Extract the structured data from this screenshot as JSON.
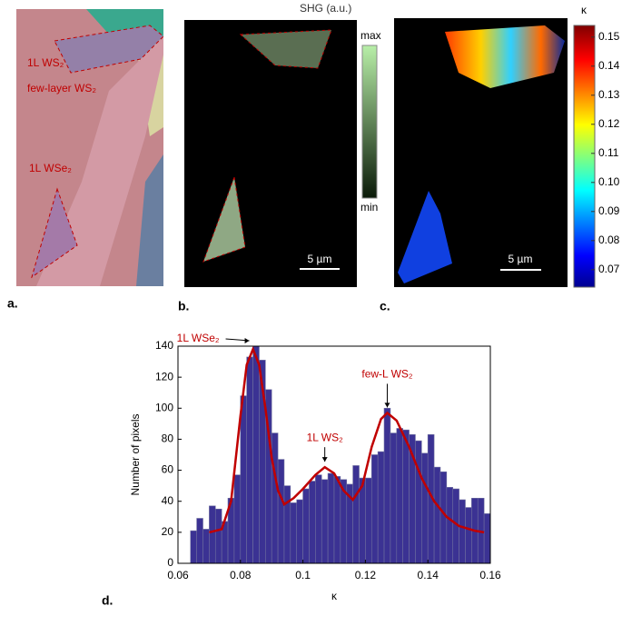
{
  "panels": {
    "a": {
      "label": "a.",
      "annotations": [
        "1L WS₂",
        "few-layer WS₂",
        "1L WSe₂"
      ]
    },
    "b": {
      "label": "b.",
      "colorbar_title": "SHG (a.u.)",
      "colorbar_max": "max",
      "colorbar_min": "min",
      "scale_bar": "5 µm"
    },
    "c": {
      "label": "c.",
      "colorbar_title": "κ",
      "scale_bar": "5 µm",
      "clim": [
        0.064,
        0.154
      ],
      "cticks": [
        0.07,
        0.08,
        0.09,
        {
          "value": 0.1,
          "label": "0.10"
        },
        0.11,
        0.12,
        0.13,
        0.14,
        0.15
      ]
    },
    "d": {
      "label": "d."
    }
  },
  "chart_data": {
    "type": "histogram",
    "xlabel": "κ",
    "ylabel": "Number of pixels",
    "bins": [
      0.064,
      0.066,
      0.068,
      0.07,
      0.072,
      0.074,
      0.076,
      0.078,
      0.08,
      0.082,
      0.084,
      0.086,
      0.088,
      0.09,
      0.092,
      0.094,
      0.096,
      0.098,
      0.1,
      0.102,
      0.104,
      0.106,
      0.108,
      0.11,
      0.112,
      0.114,
      0.116,
      0.118,
      0.12,
      0.122,
      0.124,
      0.126,
      0.128,
      0.13,
      0.132,
      0.134,
      0.136,
      0.138,
      0.14,
      0.142,
      0.144,
      0.146,
      0.148,
      0.15,
      0.152,
      0.154,
      0.156,
      0.158,
      0.16
    ],
    "values": [
      21,
      29,
      22,
      37,
      35,
      27,
      42,
      57,
      108,
      133,
      140,
      131,
      112,
      84,
      67,
      50,
      39,
      41,
      48,
      53,
      57,
      54,
      58,
      56,
      54,
      51,
      63,
      55,
      55,
      70,
      72,
      100,
      84,
      87,
      86,
      83,
      79,
      71,
      83,
      62,
      59,
      49,
      48,
      41,
      36,
      42,
      42,
      32
    ],
    "color": "#3b3293",
    "fit": {
      "color": "#c00000",
      "x": [
        0.07,
        0.074,
        0.077,
        0.08,
        0.082,
        0.084,
        0.086,
        0.088,
        0.09,
        0.092,
        0.094,
        0.097,
        0.1,
        0.104,
        0.107,
        0.11,
        0.113,
        0.116,
        0.119,
        0.122,
        0.125,
        0.127,
        0.13,
        0.134,
        0.138,
        0.142,
        0.146,
        0.15,
        0.155,
        0.158
      ],
      "values": [
        20,
        22,
        40,
        95,
        128,
        138,
        128,
        100,
        68,
        47,
        38,
        42,
        48,
        57,
        62,
        58,
        47,
        41,
        50,
        75,
        93,
        97,
        92,
        75,
        55,
        40,
        30,
        24,
        21,
        20
      ]
    },
    "annotations": [
      {
        "text": "1L WSe₂",
        "x": 0.084,
        "y": 140
      },
      {
        "text": "1L WS₂",
        "x": 0.107,
        "y": 62
      },
      {
        "text": "few-L WS₂",
        "x": 0.127,
        "y": 97
      }
    ],
    "xlim": [
      0.06,
      0.16
    ],
    "xticks": [
      0.06,
      0.08,
      0.1,
      0.12,
      0.14,
      0.16
    ],
    "ylim": [
      0,
      140
    ],
    "yticks": [
      0,
      20,
      40,
      60,
      80,
      100,
      120,
      140
    ]
  }
}
